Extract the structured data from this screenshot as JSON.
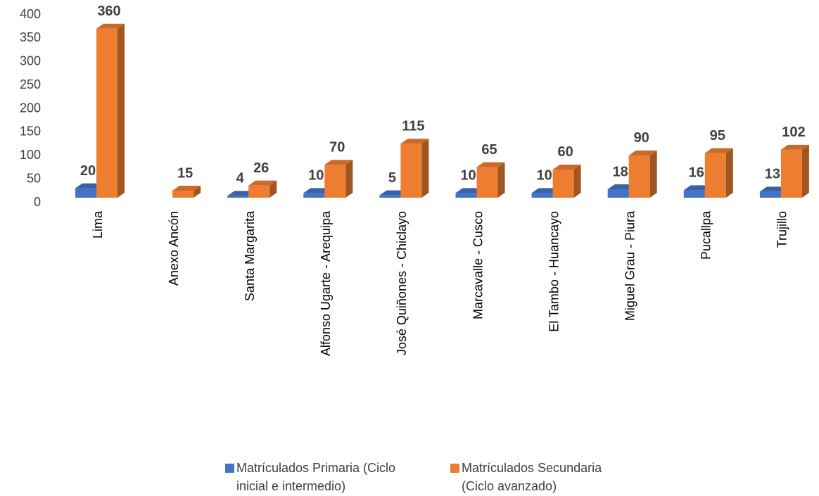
{
  "chart_data": {
    "type": "bar3d",
    "categories": [
      "Lima",
      "Anexo Ancón",
      "Santa Margarita",
      "Alfonso Ugarte - Arequipa",
      "José Quiñones - Chiclayo",
      "Marcavalle - Cusco",
      "El Tambo - Huancayo",
      "Miguel Grau - Piura",
      "Pucallpa",
      "Trujillo"
    ],
    "series": [
      {
        "name": "Matrículados Primaria (Ciclo inicial e intermedio)",
        "color": "#4472c4",
        "values": [
          20,
          null,
          4,
          10,
          5,
          10,
          10,
          18,
          16,
          13
        ]
      },
      {
        "name": "Matrículados Secundaria (Ciclo avanzado)",
        "color": "#ed7d31",
        "values": [
          360,
          15,
          26,
          70,
          115,
          65,
          60,
          90,
          95,
          102
        ]
      }
    ],
    "ylim": [
      0,
      400
    ],
    "yticks": [
      0,
      50,
      100,
      150,
      200,
      250,
      300,
      350,
      400
    ],
    "legend": "bottom"
  }
}
